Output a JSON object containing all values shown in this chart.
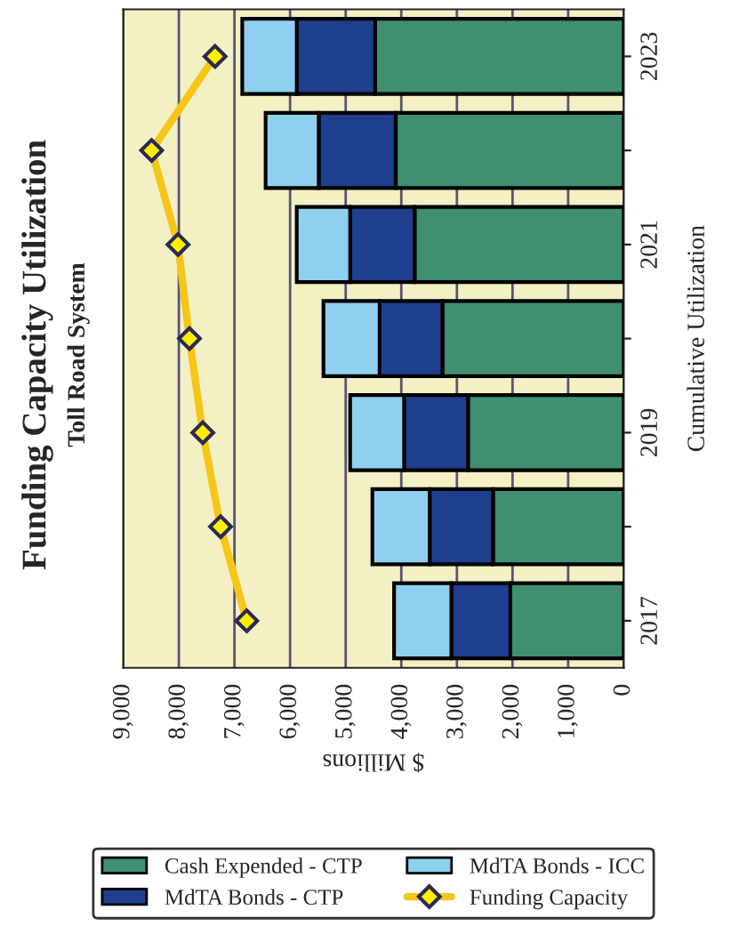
{
  "chart_data": {
    "type": "bar",
    "title": "Funding Capacity Utilization",
    "subtitle": "Toll Road System",
    "xlabel": "$ Millions",
    "ylabel": "Cumulative Utilization",
    "orientation": "horizontal",
    "stacked": true,
    "categories": [
      "2023",
      null,
      "2021",
      null,
      "2019",
      null,
      "2017"
    ],
    "series": [
      {
        "name": "Cash Expended - CTP",
        "color": "#3f8f70",
        "values": [
          4470,
          4100,
          3760,
          3260,
          2800,
          2350,
          2040
        ]
      },
      {
        "name": "MdTA Bonds - CTP",
        "color": "#1f3f8f",
        "values": [
          1410,
          1385,
          1160,
          1130,
          1150,
          1140,
          1060
        ]
      },
      {
        "name": "MdTA Bonds - ICC",
        "color": "#8fd0f0",
        "values": [
          980,
          955,
          960,
          1010,
          970,
          1030,
          1030
        ]
      },
      {
        "name": "Funding Capacity",
        "type": "line",
        "color": "#f5c518",
        "marker": "diamond",
        "values": [
          7350,
          8490,
          8015,
          7810,
          7570,
          7250,
          6780
        ]
      }
    ],
    "xlim": [
      9000,
      0
    ],
    "xticks": [
      {
        "value": 9000,
        "label": "9,000"
      },
      {
        "value": 8000,
        "label": "8,000"
      },
      {
        "value": 7000,
        "label": "7,000"
      },
      {
        "value": 6000,
        "label": "6,000"
      },
      {
        "value": 5000,
        "label": "5,000"
      },
      {
        "value": 4000,
        "label": "4,000"
      },
      {
        "value": 3000,
        "label": "3,000"
      },
      {
        "value": 2000,
        "label": "2,000"
      },
      {
        "value": 1000,
        "label": "1,000"
      },
      0
    ],
    "grid": "x",
    "legend": "bottom"
  }
}
